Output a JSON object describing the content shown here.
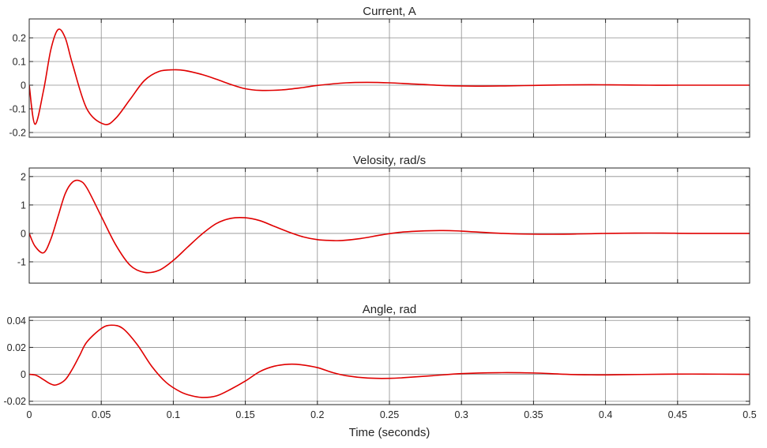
{
  "chart_data": [
    {
      "type": "line",
      "title": "Current, A",
      "xlim": [
        0,
        0.5
      ],
      "ylim": [
        -0.22,
        0.28
      ],
      "yticks": [
        -0.2,
        -0.1,
        0,
        0.1,
        0.2
      ],
      "ytick_labels": [
        "-0.2",
        "-0.1",
        "0",
        "0.1",
        "0.2"
      ],
      "grid": true,
      "series": [
        {
          "color": "#e00000",
          "x": [
            0,
            0.004,
            0.01,
            0.015,
            0.02,
            0.025,
            0.03,
            0.04,
            0.052,
            0.06,
            0.07,
            0.08,
            0.09,
            0.1,
            0.108,
            0.12,
            0.13,
            0.14,
            0.15,
            0.16,
            0.175,
            0.19,
            0.2,
            0.22,
            0.235,
            0.25,
            0.27,
            0.29,
            0.31,
            0.33,
            0.35,
            0.37,
            0.39,
            0.41,
            0.43,
            0.45,
            0.47,
            0.5
          ],
          "y": [
            0,
            -0.165,
            -0.02,
            0.15,
            0.235,
            0.2,
            0.09,
            -0.1,
            -0.165,
            -0.14,
            -0.06,
            0.02,
            0.058,
            0.065,
            0.062,
            0.045,
            0.025,
            0.003,
            -0.015,
            -0.022,
            -0.02,
            -0.01,
            -0.001,
            0.01,
            0.012,
            0.01,
            0.004,
            -0.002,
            -0.004,
            -0.003,
            -0.001,
            0.001,
            0.002,
            0.001,
            0,
            0,
            0,
            0
          ]
        }
      ]
    },
    {
      "type": "line",
      "title": "Velosity, rad/s",
      "xlim": [
        0,
        0.5
      ],
      "ylim": [
        -1.75,
        2.3
      ],
      "yticks": [
        -1,
        0,
        1,
        2
      ],
      "ytick_labels": [
        "-1",
        "0",
        "1",
        "2"
      ],
      "grid": true,
      "series": [
        {
          "color": "#e00000",
          "x": [
            0,
            0.004,
            0.01,
            0.015,
            0.02,
            0.025,
            0.03,
            0.035,
            0.04,
            0.05,
            0.06,
            0.07,
            0.08,
            0.09,
            0.1,
            0.11,
            0.12,
            0.13,
            0.14,
            0.15,
            0.16,
            0.17,
            0.18,
            0.19,
            0.2,
            0.21,
            0.217,
            0.23,
            0.245,
            0.26,
            0.285,
            0.3,
            0.32,
            0.34,
            0.36,
            0.38,
            0.4,
            0.42,
            0.44,
            0.46,
            0.5
          ],
          "y": [
            0,
            -0.45,
            -0.68,
            -0.2,
            0.6,
            1.4,
            1.8,
            1.85,
            1.6,
            0.6,
            -0.4,
            -1.12,
            -1.37,
            -1.3,
            -0.95,
            -0.48,
            -0.02,
            0.35,
            0.53,
            0.55,
            0.45,
            0.25,
            0.05,
            -0.12,
            -0.22,
            -0.25,
            -0.25,
            -0.18,
            -0.05,
            0.05,
            0.1,
            0.08,
            0.02,
            -0.02,
            -0.03,
            -0.02,
            0,
            0.01,
            0.01,
            0,
            0
          ]
        }
      ]
    },
    {
      "type": "line",
      "title": "Angle, rad",
      "xlim": [
        0,
        0.5
      ],
      "ylim": [
        -0.0225,
        0.0425
      ],
      "yticks": [
        -0.02,
        0,
        0.02,
        0.04
      ],
      "ytick_labels": [
        "-0.02",
        "0",
        "0.02",
        "0.04"
      ],
      "xticks": [
        0,
        0.05,
        0.1,
        0.15,
        0.2,
        0.25,
        0.3,
        0.35,
        0.4,
        0.45,
        0.5
      ],
      "xtick_labels": [
        "0",
        "0.05",
        "0.1",
        "0.15",
        "0.2",
        "0.25",
        "0.3",
        "0.35",
        "0.4",
        "0.45",
        "0.5"
      ],
      "xlabel": "Time (seconds)",
      "grid": true,
      "series": [
        {
          "color": "#e00000",
          "x": [
            0,
            0.005,
            0.01,
            0.015,
            0.019,
            0.025,
            0.03,
            0.035,
            0.04,
            0.05,
            0.057,
            0.065,
            0.075,
            0.085,
            0.095,
            0.105,
            0.113,
            0.121,
            0.13,
            0.14,
            0.15,
            0.16,
            0.17,
            0.18,
            0.188,
            0.2,
            0.21,
            0.22,
            0.235,
            0.25,
            0.26,
            0.28,
            0.3,
            0.325,
            0.35,
            0.37,
            0.39,
            0.41,
            0.44,
            0.46,
            0.5
          ],
          "y": [
            0,
            -0.0008,
            -0.004,
            -0.0072,
            -0.0078,
            -0.004,
            0.004,
            0.014,
            0.024,
            0.034,
            0.0365,
            0.034,
            0.022,
            0.006,
            -0.006,
            -0.013,
            -0.016,
            -0.0172,
            -0.016,
            -0.011,
            -0.005,
            0.002,
            0.006,
            0.0075,
            0.0072,
            0.005,
            0.0015,
            -0.001,
            -0.0028,
            -0.003,
            -0.0025,
            -0.001,
            0.0005,
            0.0012,
            0.001,
            0.0001,
            -0.0004,
            -0.0003,
            0.0001,
            0.0002,
            0
          ]
        }
      ]
    }
  ]
}
